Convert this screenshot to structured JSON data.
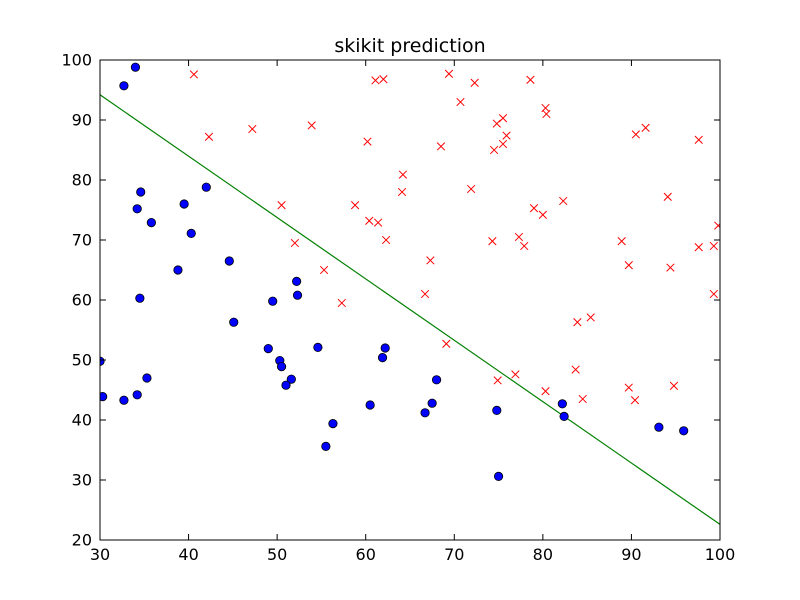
{
  "chart_data": {
    "type": "scatter",
    "title": "skikit prediction",
    "xlabel": "",
    "ylabel": "",
    "xlim": [
      30,
      100
    ],
    "ylim": [
      20,
      100
    ],
    "x_ticks": [
      30,
      40,
      50,
      60,
      70,
      80,
      90,
      100
    ],
    "y_ticks": [
      20,
      30,
      40,
      50,
      60,
      70,
      80,
      90,
      100
    ],
    "grid": false,
    "colors": {
      "class0": "#0000ff",
      "class1": "#ff0000",
      "boundary": "#008000"
    },
    "series": [
      {
        "marker": "circle",
        "points": [
          [
            34.0,
            98.8
          ],
          [
            32.7,
            95.7
          ],
          [
            42.0,
            78.8
          ],
          [
            34.6,
            78.0
          ],
          [
            39.5,
            76.0
          ],
          [
            34.2,
            75.2
          ],
          [
            35.8,
            72.9
          ],
          [
            40.3,
            71.1
          ],
          [
            44.6,
            66.5
          ],
          [
            38.8,
            65.0
          ],
          [
            52.2,
            63.1
          ],
          [
            52.3,
            60.8
          ],
          [
            34.5,
            60.3
          ],
          [
            49.5,
            59.8
          ],
          [
            45.1,
            56.3
          ],
          [
            30.0,
            49.8
          ],
          [
            49.0,
            51.9
          ],
          [
            54.6,
            52.1
          ],
          [
            62.2,
            52.0
          ],
          [
            61.9,
            50.4
          ],
          [
            50.3,
            49.9
          ],
          [
            50.5,
            48.9
          ],
          [
            35.3,
            47.0
          ],
          [
            51.6,
            46.8
          ],
          [
            51.0,
            45.8
          ],
          [
            68.0,
            46.7
          ],
          [
            30.3,
            43.9
          ],
          [
            32.7,
            43.3
          ],
          [
            34.2,
            44.2
          ],
          [
            60.5,
            42.5
          ],
          [
            67.5,
            42.8
          ],
          [
            82.2,
            42.7
          ],
          [
            66.7,
            41.2
          ],
          [
            74.8,
            41.6
          ],
          [
            82.4,
            40.6
          ],
          [
            56.3,
            39.4
          ],
          [
            93.1,
            38.8
          ],
          [
            95.9,
            38.2
          ],
          [
            55.5,
            35.6
          ],
          [
            75.0,
            30.6
          ]
        ]
      },
      {
        "marker": "x",
        "points": [
          [
            40.6,
            97.6
          ],
          [
            69.4,
            97.7
          ],
          [
            61.1,
            96.6
          ],
          [
            62.0,
            96.8
          ],
          [
            72.3,
            96.2
          ],
          [
            78.6,
            96.7
          ],
          [
            80.3,
            92.0
          ],
          [
            80.4,
            91.0
          ],
          [
            70.7,
            93.0
          ],
          [
            75.5,
            90.3
          ],
          [
            74.8,
            89.4
          ],
          [
            47.2,
            88.5
          ],
          [
            53.9,
            89.1
          ],
          [
            91.6,
            88.7
          ],
          [
            90.5,
            87.6
          ],
          [
            97.6,
            86.7
          ],
          [
            42.3,
            87.2
          ],
          [
            60.2,
            86.4
          ],
          [
            75.9,
            87.4
          ],
          [
            75.5,
            86.0
          ],
          [
            68.5,
            85.6
          ],
          [
            74.5,
            85.0
          ],
          [
            64.2,
            80.9
          ],
          [
            64.1,
            78.0
          ],
          [
            71.9,
            78.5
          ],
          [
            94.1,
            77.2
          ],
          [
            82.3,
            76.5
          ],
          [
            50.5,
            75.8
          ],
          [
            58.8,
            75.8
          ],
          [
            79.0,
            75.3
          ],
          [
            80.0,
            74.2
          ],
          [
            60.4,
            73.2
          ],
          [
            61.4,
            72.9
          ],
          [
            99.8,
            72.4
          ],
          [
            62.3,
            70.0
          ],
          [
            74.3,
            69.8
          ],
          [
            52.0,
            69.5
          ],
          [
            77.3,
            70.5
          ],
          [
            77.9,
            69.0
          ],
          [
            88.9,
            69.8
          ],
          [
            97.6,
            68.8
          ],
          [
            99.3,
            69.0
          ],
          [
            67.3,
            66.6
          ],
          [
            89.7,
            65.8
          ],
          [
            94.4,
            65.4
          ],
          [
            55.3,
            65.0
          ],
          [
            66.7,
            61.0
          ],
          [
            99.3,
            61.0
          ],
          [
            57.3,
            59.5
          ],
          [
            85.4,
            57.1
          ],
          [
            83.9,
            56.3
          ],
          [
            69.1,
            52.7
          ],
          [
            83.7,
            48.4
          ],
          [
            76.9,
            47.6
          ],
          [
            74.9,
            46.6
          ],
          [
            89.7,
            45.4
          ],
          [
            94.8,
            45.7
          ],
          [
            80.3,
            44.8
          ],
          [
            90.4,
            43.3
          ],
          [
            84.5,
            43.5
          ]
        ]
      }
    ],
    "decision_boundary": {
      "x": [
        30,
        100
      ],
      "y": [
        94.2,
        22.6
      ]
    }
  }
}
